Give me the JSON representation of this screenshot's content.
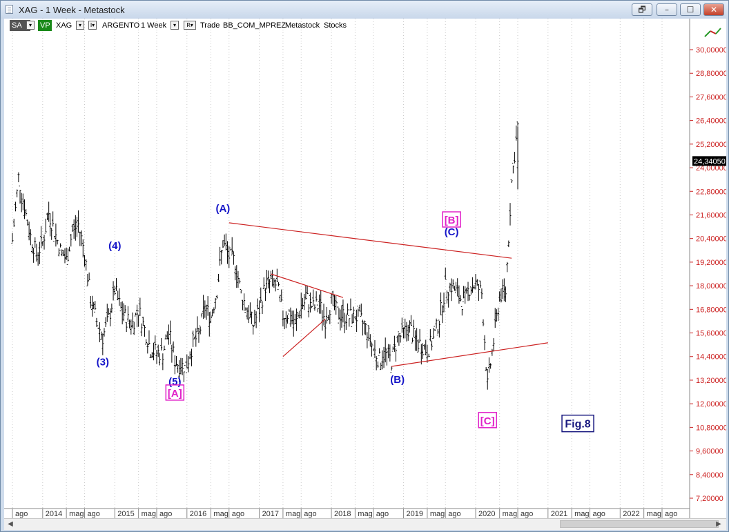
{
  "window": {
    "title": "XAG - 1 Week - Metastock",
    "buttons": {
      "restore_alt": "🗗",
      "minimize": "–",
      "maximize": "☐",
      "close": "✕"
    }
  },
  "toolbar": {
    "sa": "SA",
    "vp": "VP",
    "symbol": "XAG",
    "name": "ARGENTO",
    "period": "1 Week",
    "source": "Trade",
    "datafolder": "BB_COM_MPREZ",
    "provider": "Metastock",
    "type": "Stocks"
  },
  "colors": {
    "wave_label": "#1515c8",
    "wave_label_pink": "#e020c8",
    "trendline": "#cc2222",
    "price": "#000000"
  },
  "chart_data": {
    "type": "ohlc",
    "title": "XAG - 1 Week - Metastock",
    "ylim": [
      7.2,
      31.2
    ],
    "yticks": [
      "30,00000",
      "28,80000",
      "27,60000",
      "26,40000",
      "25,20000",
      "24,00000",
      "22,80000",
      "21,60000",
      "20,40000",
      "19,20000",
      "18,00000",
      "16,80000",
      "15,60000",
      "14,40000",
      "13,20000",
      "12,00000",
      "10,80000",
      "9,60000",
      "8,40000",
      "7,20000"
    ],
    "ytick_values": [
      30.0,
      28.8,
      27.6,
      26.4,
      25.2,
      24.0,
      22.8,
      21.6,
      20.4,
      19.2,
      18.0,
      16.8,
      15.6,
      14.4,
      13.2,
      12.0,
      10.8,
      9.6,
      8.4,
      7.2
    ],
    "last_price_label": "24,34050",
    "last_price": 24.3405,
    "x_labels": [
      {
        "t": "ago",
        "d": "2013-08"
      },
      {
        "t": "2014",
        "d": "2014-01"
      },
      {
        "t": "mag",
        "d": "2014-05"
      },
      {
        "t": "ago",
        "d": "2014-08"
      },
      {
        "t": "2015",
        "d": "2015-01"
      },
      {
        "t": "mag",
        "d": "2015-05"
      },
      {
        "t": "ago",
        "d": "2015-08"
      },
      {
        "t": "2016",
        "d": "2016-01"
      },
      {
        "t": "mag",
        "d": "2016-05"
      },
      {
        "t": "ago",
        "d": "2016-08"
      },
      {
        "t": "2017",
        "d": "2017-01"
      },
      {
        "t": "mag",
        "d": "2017-05"
      },
      {
        "t": "ago",
        "d": "2017-08"
      },
      {
        "t": "2018",
        "d": "2018-01"
      },
      {
        "t": "mag",
        "d": "2018-05"
      },
      {
        "t": "ago",
        "d": "2018-08"
      },
      {
        "t": "2019",
        "d": "2019-01"
      },
      {
        "t": "mag",
        "d": "2019-05"
      },
      {
        "t": "ago",
        "d": "2019-08"
      },
      {
        "t": "2020",
        "d": "2020-01"
      },
      {
        "t": "mag",
        "d": "2020-05"
      },
      {
        "t": "ago",
        "d": "2020-08"
      },
      {
        "t": "2021",
        "d": "2021-01"
      },
      {
        "t": "mag",
        "d": "2021-05"
      },
      {
        "t": "ago",
        "d": "2021-08"
      },
      {
        "t": "2022",
        "d": "2022-01"
      },
      {
        "t": "mag",
        "d": "2022-05"
      },
      {
        "t": "ago",
        "d": "2022-08"
      }
    ],
    "price_path": [
      [
        "2013-08",
        20.3
      ],
      [
        "2013-09",
        23.5
      ],
      [
        "2013-10",
        22.0
      ],
      [
        "2013-11",
        20.5
      ],
      [
        "2013-12",
        19.6
      ],
      [
        "2014-01",
        20.2
      ],
      [
        "2014-02",
        21.7
      ],
      [
        "2014-03",
        20.8
      ],
      [
        "2014-04",
        19.8
      ],
      [
        "2014-05",
        19.3
      ],
      [
        "2014-06",
        20.8
      ],
      [
        "2014-07",
        21.1
      ],
      [
        "2014-08",
        19.7
      ],
      [
        "2014-09",
        17.3
      ],
      [
        "2014-10",
        16.2
      ],
      [
        "2014-11",
        15.4
      ],
      [
        "2014-12",
        16.3
      ],
      [
        "2015-01",
        17.8
      ],
      [
        "2015-02",
        16.8
      ],
      [
        "2015-03",
        16.3
      ],
      [
        "2015-04",
        16.1
      ],
      [
        "2015-05",
        16.8
      ],
      [
        "2015-06",
        15.8
      ],
      [
        "2015-07",
        14.8
      ],
      [
        "2015-08",
        14.6
      ],
      [
        "2015-09",
        14.6
      ],
      [
        "2015-10",
        15.6
      ],
      [
        "2015-11",
        14.2
      ],
      [
        "2015-12",
        13.9
      ],
      [
        "2016-01",
        14.0
      ],
      [
        "2016-02",
        15.1
      ],
      [
        "2016-03",
        15.5
      ],
      [
        "2016-04",
        16.9
      ],
      [
        "2016-05",
        16.4
      ],
      [
        "2016-06",
        17.8
      ],
      [
        "2016-07",
        20.2
      ],
      [
        "2016-08",
        19.5
      ],
      [
        "2016-09",
        19.2
      ],
      [
        "2016-10",
        17.6
      ],
      [
        "2016-11",
        16.8
      ],
      [
        "2016-12",
        16.0
      ],
      [
        "2017-01",
        16.8
      ],
      [
        "2017-02",
        18.0
      ],
      [
        "2017-03",
        18.2
      ],
      [
        "2017-04",
        18.0
      ],
      [
        "2017-05",
        16.5
      ],
      [
        "2017-06",
        16.6
      ],
      [
        "2017-07",
        15.9
      ],
      [
        "2017-08",
        17.0
      ],
      [
        "2017-09",
        17.3
      ],
      [
        "2017-10",
        16.9
      ],
      [
        "2017-11",
        17.0
      ],
      [
        "2017-12",
        16.3
      ],
      [
        "2018-01",
        17.2
      ],
      [
        "2018-02",
        16.6
      ],
      [
        "2018-03",
        16.5
      ],
      [
        "2018-04",
        16.4
      ],
      [
        "2018-05",
        16.5
      ],
      [
        "2018-06",
        16.2
      ],
      [
        "2018-07",
        15.7
      ],
      [
        "2018-08",
        14.8
      ],
      [
        "2018-09",
        14.2
      ],
      [
        "2018-10",
        14.6
      ],
      [
        "2018-11",
        14.2
      ],
      [
        "2018-12",
        15.3
      ],
      [
        "2019-01",
        15.6
      ],
      [
        "2019-02",
        15.9
      ],
      [
        "2019-03",
        15.2
      ],
      [
        "2019-04",
        15.0
      ],
      [
        "2019-05",
        14.7
      ],
      [
        "2019-06",
        15.3
      ],
      [
        "2019-07",
        16.3
      ],
      [
        "2019-08",
        17.9
      ],
      [
        "2019-09",
        18.0
      ],
      [
        "2019-10",
        17.6
      ],
      [
        "2019-11",
        17.1
      ],
      [
        "2019-12",
        17.9
      ],
      [
        "2020-01",
        18.1
      ],
      [
        "2020-02",
        17.6
      ],
      [
        "2020-03",
        12.9
      ],
      [
        "2020-04",
        15.2
      ],
      [
        "2020-05",
        17.5
      ],
      [
        "2020-06",
        17.7
      ],
      [
        "2020-07",
        23.3
      ],
      [
        "2020-08",
        26.1
      ],
      [
        "2020-08",
        24.3
      ]
    ],
    "trendlines": [
      {
        "name": "upper-triangle",
        "from": [
          "2016-08",
          21.2
        ],
        "to": [
          "2020-07",
          19.4
        ]
      },
      {
        "name": "lower-triangle",
        "from": [
          "2018-11",
          13.9
        ],
        "to": [
          "2021-01",
          15.1
        ]
      },
      {
        "name": "inner-upper",
        "from": [
          "2017-03",
          18.6
        ],
        "to": [
          "2018-03",
          17.4
        ]
      },
      {
        "name": "inner-lower",
        "from": [
          "2017-05",
          14.4
        ],
        "to": [
          "2017-12",
          16.3
        ]
      }
    ],
    "wave_labels": [
      {
        "text": "(4)",
        "d": "2015-01",
        "v": 20.0,
        "color": "blue"
      },
      {
        "text": "(3)",
        "d": "2014-11",
        "v": 14.1,
        "color": "blue"
      },
      {
        "text": "(5)",
        "d": "2015-11",
        "v": 13.1,
        "color": "blue"
      },
      {
        "text": "[A]",
        "d": "2015-11",
        "v": 12.5,
        "color": "pink",
        "boxed": true
      },
      {
        "text": "(A)",
        "d": "2016-07",
        "v": 21.9,
        "color": "blue"
      },
      {
        "text": "[B]",
        "d": "2019-09",
        "v": 21.3,
        "color": "pink",
        "boxed": true
      },
      {
        "text": "(C)",
        "d": "2019-09",
        "v": 20.7,
        "color": "blue"
      },
      {
        "text": "(B)",
        "d": "2018-12",
        "v": 13.2,
        "color": "blue"
      },
      {
        "text": "[C]",
        "d": "2020-03",
        "v": 11.1,
        "color": "pink",
        "boxed": true
      }
    ],
    "annotation": "Fig.8"
  }
}
